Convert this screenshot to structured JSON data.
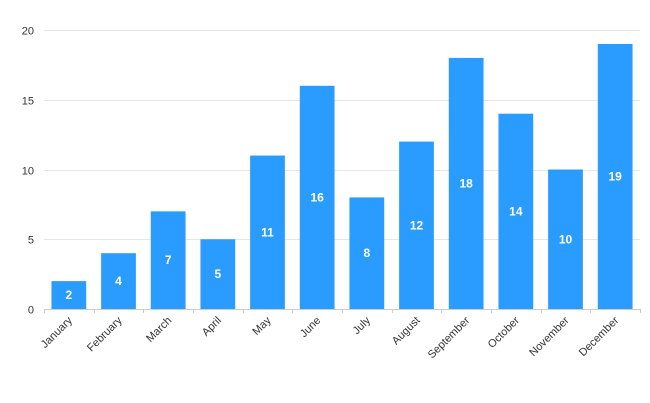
{
  "chart_data": {
    "type": "bar",
    "title": "",
    "xlabel": "",
    "ylabel": "",
    "categories": [
      "January",
      "February",
      "March",
      "April",
      "May",
      "June",
      "July",
      "August",
      "September",
      "October",
      "November",
      "December"
    ],
    "values": [
      2,
      4,
      7,
      5,
      11,
      16,
      8,
      12,
      18,
      14,
      10,
      19
    ],
    "ylim": [
      0,
      20
    ],
    "yticks": [
      0,
      5,
      10,
      15,
      20
    ],
    "grid": true,
    "legend": "none",
    "data_labels": "inside-center"
  },
  "colors": {
    "bar": "#2b9cff",
    "grid": "#e6e6e6",
    "axis": "#cccccc",
    "label_text": "#ffffff"
  }
}
